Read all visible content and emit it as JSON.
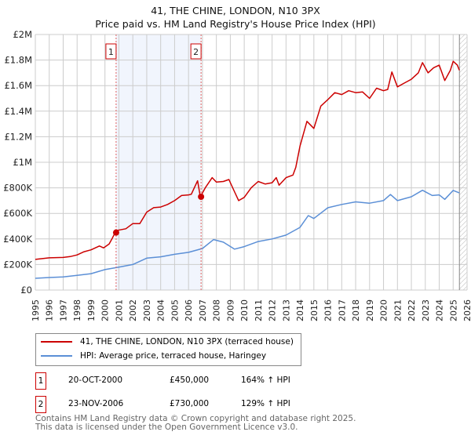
{
  "title_line1": "41, THE CHINE, LONDON, N10 3PX",
  "title_line2": "Price paid vs. HM Land Registry's House Price Index (HPI)",
  "chart_data": {
    "type": "line",
    "title": "41, THE CHINE, LONDON, N10 3PX — Price paid vs. HM Land Registry's House Price Index (HPI)",
    "xlim": [
      1995,
      2026
    ],
    "ylim": [
      0,
      2000000
    ],
    "x_ticks": [
      "1995",
      "1996",
      "1997",
      "1998",
      "1999",
      "2000",
      "2001",
      "2002",
      "2003",
      "2004",
      "2005",
      "2006",
      "2007",
      "2008",
      "2009",
      "2010",
      "2011",
      "2012",
      "2013",
      "2014",
      "2015",
      "2016",
      "2017",
      "2018",
      "2019",
      "2020",
      "2021",
      "2022",
      "2023",
      "2024",
      "2025",
      "2026"
    ],
    "y_ticks": [
      {
        "v": 0,
        "label": "£0"
      },
      {
        "v": 200000,
        "label": "£200K"
      },
      {
        "v": 400000,
        "label": "£400K"
      },
      {
        "v": 600000,
        "label": "£600K"
      },
      {
        "v": 800000,
        "label": "£800K"
      },
      {
        "v": 1000000,
        "label": "£1M"
      },
      {
        "v": 1200000,
        "label": "£1.2M"
      },
      {
        "v": 1400000,
        "label": "£1.4M"
      },
      {
        "v": 1600000,
        "label": "£1.6M"
      },
      {
        "v": 1800000,
        "label": "£1.8M"
      },
      {
        "v": 2000000,
        "label": "£2M"
      }
    ],
    "grid": true,
    "shaded_range": [
      2000.8,
      2006.9
    ],
    "hatched_from": 2025.45,
    "series": [
      {
        "name": "41, THE CHINE, LONDON, N10 3PX (terraced house)",
        "color": "#cc0000",
        "x": [
          1995,
          1996,
          1997,
          1997.5,
          1998,
          1998.5,
          1999,
          1999.6,
          1999.9,
          2000.3,
          2000.5,
          2000.8,
          2001.5,
          2002,
          2002.5,
          2003,
          2003.5,
          2004,
          2004.5,
          2005,
          2005.5,
          2006,
          2006.2,
          2006.65,
          2006.85,
          2007.2,
          2007.7,
          2008,
          2008.5,
          2008.9,
          2009.3,
          2009.6,
          2010,
          2010.5,
          2011,
          2011.5,
          2012,
          2012.3,
          2012.5,
          2013,
          2013.5,
          2013.7,
          2014,
          2014.5,
          2015,
          2015.5,
          2016,
          2016.5,
          2017,
          2017.5,
          2018,
          2018.5,
          2019,
          2019.5,
          2020,
          2020.3,
          2020.6,
          2021,
          2021.5,
          2022,
          2022.5,
          2022.8,
          2023.2,
          2023.6,
          2024,
          2024.4,
          2024.8,
          2025,
          2025.3,
          2025.45
        ],
        "y": [
          240000,
          252000,
          255000,
          262000,
          275000,
          300000,
          315000,
          345000,
          330000,
          360000,
          400000,
          465000,
          480000,
          520000,
          520000,
          610000,
          645000,
          650000,
          670000,
          700000,
          740000,
          745000,
          750000,
          855000,
          730000,
          800000,
          880000,
          845000,
          850000,
          865000,
          770000,
          700000,
          725000,
          800000,
          850000,
          830000,
          840000,
          880000,
          820000,
          880000,
          900000,
          960000,
          1125000,
          1320000,
          1265000,
          1440000,
          1490000,
          1545000,
          1530000,
          1560000,
          1545000,
          1550000,
          1500000,
          1580000,
          1560000,
          1570000,
          1707000,
          1590000,
          1620000,
          1650000,
          1700000,
          1780000,
          1700000,
          1740000,
          1760000,
          1640000,
          1720000,
          1790000,
          1760000,
          1720000
        ]
      },
      {
        "name": "HPI: Average price, terraced house, Haringey",
        "color": "#5b8fd6",
        "x": [
          1995,
          1996,
          1997,
          1998,
          1999,
          2000,
          2001,
          2002,
          2003,
          2004,
          2005,
          2006,
          2007,
          2007.8,
          2008.5,
          2009.3,
          2010,
          2011,
          2012,
          2013,
          2014,
          2014.6,
          2015,
          2016,
          2017,
          2018,
          2019,
          2020,
          2020.5,
          2021,
          2022,
          2022.8,
          2023.5,
          2024,
          2024.4,
          2025,
          2025.45
        ],
        "y": [
          92000,
          98000,
          103000,
          115000,
          128000,
          160000,
          180000,
          200000,
          250000,
          260000,
          280000,
          295000,
          325000,
          395000,
          375000,
          320000,
          340000,
          380000,
          400000,
          430000,
          490000,
          583000,
          560000,
          644000,
          670000,
          690000,
          680000,
          700000,
          748000,
          700000,
          730000,
          781000,
          740000,
          745000,
          710000,
          780000,
          760000
        ]
      }
    ],
    "sales": [
      {
        "id": "1",
        "x": 2000.8,
        "y": 450000
      },
      {
        "id": "2",
        "x": 2006.9,
        "y": 730000
      }
    ]
  },
  "legend": {
    "red_label": "41, THE CHINE, LONDON, N10 3PX (terraced house)",
    "blue_label": "HPI: Average price, terraced house, Haringey"
  },
  "sales_table": [
    {
      "num": "1",
      "date": "20-OCT-2000",
      "price": "£450,000",
      "hpi": "164% ↑ HPI"
    },
    {
      "num": "2",
      "date": "23-NOV-2006",
      "price": "£730,000",
      "hpi": "129% ↑ HPI"
    }
  ],
  "footer": {
    "line1": "Contains HM Land Registry data © Crown copyright and database right 2025.",
    "line2": "This data is licensed under the Open Government Licence v3.0."
  }
}
